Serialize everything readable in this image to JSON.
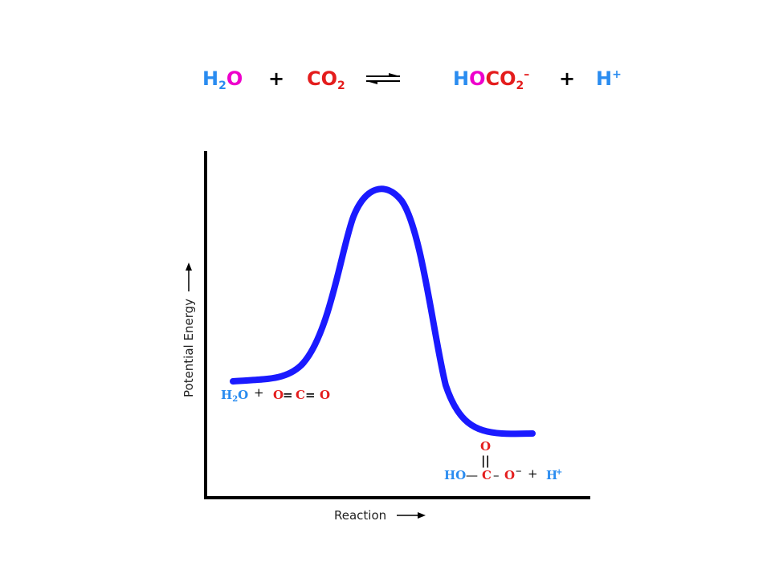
{
  "colors": {
    "blue": "#2a8cf0",
    "magenta": "#ee00cc",
    "red": "#e41d1d",
    "curve": "#1a1aff",
    "black": "#000000"
  },
  "equation": {
    "reactant1": {
      "h": "H",
      "sub": "2",
      "o": "O"
    },
    "plus1": "+",
    "reactant2": {
      "co": "CO",
      "sub": "2"
    },
    "product1": {
      "h": "H",
      "o": "O",
      "co": "CO",
      "sub": "2",
      "charge": "–"
    },
    "plus2": "+",
    "product2": {
      "h": "H",
      "charge": "+"
    }
  },
  "axes": {
    "ylabel": "Potential Energy",
    "xlabel": "Reaction"
  },
  "reactants_label": {
    "h2o": "H",
    "h2o_sub": "2",
    "h2o_o": "O",
    "plus": "+",
    "o_left": "O",
    "eq1": "=",
    "c": "C",
    "eq2": "=",
    "o_right": "O"
  },
  "products_label": {
    "o_top": "O",
    "double_bond": "||",
    "ho": "HO",
    "dash1": "—",
    "c": "C",
    "dash2": "–",
    "o_minus": "O",
    "minus": "–",
    "plus": "+",
    "h": "H",
    "h_charge": "+"
  }
}
